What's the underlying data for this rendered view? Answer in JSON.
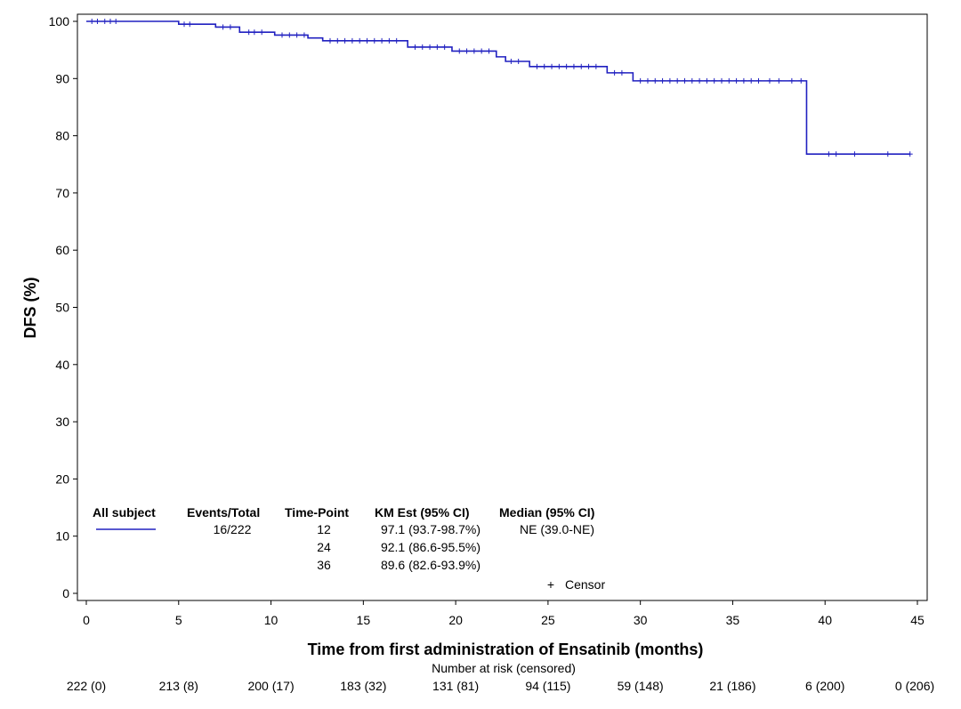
{
  "chart_data": {
    "type": "line",
    "subtype": "kaplan-meier",
    "xlabel": "Time from first administration of Ensatinib (months)",
    "ylabel": "DFS (%)",
    "xlim": [
      0,
      45
    ],
    "ylim": [
      0,
      100
    ],
    "x_ticks": [
      "0",
      "5",
      "10",
      "15",
      "20",
      "25",
      "30",
      "35",
      "40",
      "45"
    ],
    "y_ticks": [
      "0",
      "10",
      "20",
      "30",
      "40",
      "50",
      "60",
      "70",
      "80",
      "90",
      "100"
    ],
    "grid": false,
    "series": [
      {
        "color": "#2020c0",
        "steps": [
          [
            0,
            100
          ],
          [
            5,
            99.5
          ],
          [
            7,
            99.0
          ],
          [
            8.3,
            98.1
          ],
          [
            10.2,
            97.6
          ],
          [
            12,
            97.1
          ],
          [
            12.8,
            96.6
          ],
          [
            17.4,
            95.5
          ],
          [
            19.8,
            94.8
          ],
          [
            22.2,
            93.8
          ],
          [
            22.7,
            93.0
          ],
          [
            24,
            92.1
          ],
          [
            28.2,
            91.0
          ],
          [
            29.6,
            89.6
          ],
          [
            39.0,
            76.8
          ],
          [
            44.6,
            76.8
          ]
        ],
        "censor_times": [
          0.3,
          0.6,
          1.0,
          1.3,
          1.6,
          5.3,
          5.6,
          7.4,
          7.8,
          8.8,
          9.1,
          9.5,
          10.6,
          11.0,
          11.4,
          11.8,
          13.2,
          13.6,
          14.0,
          14.4,
          14.8,
          15.2,
          15.6,
          16.0,
          16.4,
          16.8,
          17.8,
          18.2,
          18.6,
          19.0,
          19.4,
          20.2,
          20.6,
          21.0,
          21.4,
          21.8,
          23.0,
          23.4,
          24.4,
          24.8,
          25.2,
          25.6,
          26.0,
          26.4,
          26.8,
          27.2,
          27.6,
          28.6,
          29.0,
          30.0,
          30.4,
          30.8,
          31.2,
          31.6,
          32.0,
          32.4,
          32.8,
          33.2,
          33.6,
          34.0,
          34.4,
          34.8,
          35.2,
          35.6,
          36.0,
          36.4,
          37.0,
          37.5,
          38.2,
          38.7,
          40.2,
          40.6,
          41.6,
          43.4,
          44.6
        ]
      }
    ],
    "legend": {
      "placement": "bottom-left",
      "headers": [
        "All subject",
        "Events/Total",
        "Time-Point",
        "KM Est (95% CI)",
        "Median (95% CI)"
      ],
      "events_total": "16/222",
      "median": "NE (39.0-NE)",
      "rows": [
        {
          "time_point": "12",
          "km_est": "97.1 (93.7-98.7%)"
        },
        {
          "time_point": "24",
          "km_est": "92.1 (86.6-95.5%)"
        },
        {
          "time_point": "36",
          "km_est": "89.6 (82.6-93.9%)"
        }
      ],
      "censor_symbol": "+",
      "censor_label": "Censor"
    },
    "risk_table": {
      "title": "Number at risk (censored)",
      "values": [
        "222 (0)",
        "213 (8)",
        "200 (17)",
        "183 (32)",
        "131 (81)",
        "94 (115)",
        "59 (148)",
        "21 (186)",
        "6 (200)",
        "0 (206)"
      ]
    }
  }
}
